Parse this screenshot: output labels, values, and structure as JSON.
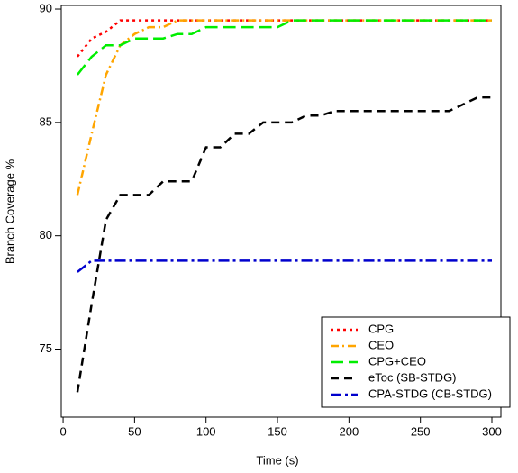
{
  "chart_data": {
    "type": "line",
    "x_label": "Time (s)",
    "y_label": "Branch Coverage %",
    "x": [
      10,
      20,
      30,
      40,
      50,
      60,
      70,
      80,
      90,
      100,
      110,
      120,
      130,
      140,
      150,
      160,
      170,
      180,
      190,
      200,
      210,
      220,
      230,
      240,
      250,
      260,
      270,
      280,
      290,
      300
    ],
    "series": [
      {
        "name": "CPG",
        "color": "#ff0000",
        "linestyle": "dotted",
        "values": [
          87.9,
          88.7,
          89.0,
          89.5,
          89.5,
          89.5,
          89.5,
          89.5,
          89.5,
          89.5,
          89.5,
          89.5,
          89.5,
          89.5,
          89.5,
          89.5,
          89.5,
          89.5,
          89.5,
          89.5,
          89.5,
          89.5,
          89.5,
          89.5,
          89.5,
          89.5,
          89.5,
          89.5,
          89.5,
          89.5
        ]
      },
      {
        "name": "CEO",
        "color": "#ffa500",
        "linestyle": "dashdot",
        "values": [
          81.8,
          84.5,
          87.1,
          88.4,
          88.9,
          89.2,
          89.2,
          89.5,
          89.5,
          89.5,
          89.5,
          89.5,
          89.5,
          89.5,
          89.5,
          89.5,
          89.5,
          89.5,
          89.5,
          89.5,
          89.5,
          89.5,
          89.5,
          89.5,
          89.5,
          89.5,
          89.5,
          89.5,
          89.5,
          89.5
        ]
      },
      {
        "name": "CPG+CEO",
        "color": "#00ee00",
        "linestyle": "longdash",
        "values": [
          87.1,
          87.9,
          88.4,
          88.4,
          88.7,
          88.7,
          88.7,
          88.9,
          88.9,
          89.2,
          89.2,
          89.2,
          89.2,
          89.2,
          89.2,
          89.5,
          89.5,
          89.5,
          89.5,
          89.5,
          89.5,
          89.5,
          89.5,
          89.5,
          89.5,
          89.5,
          89.5,
          89.5,
          89.5,
          89.5
        ]
      },
      {
        "name": "eToc (SB-STDG)",
        "color": "#000000",
        "linestyle": "dashed",
        "values": [
          73.1,
          77.0,
          80.7,
          81.8,
          81.8,
          81.8,
          82.4,
          82.4,
          82.4,
          83.9,
          83.9,
          84.5,
          84.5,
          85.0,
          85.0,
          85.0,
          85.3,
          85.3,
          85.5,
          85.5,
          85.5,
          85.5,
          85.5,
          85.5,
          85.5,
          85.5,
          85.5,
          85.8,
          86.1,
          86.1
        ]
      },
      {
        "name": "CPA-STDG (CB-STDG)",
        "color": "#0000cd",
        "linestyle": "twodash",
        "values": [
          78.4,
          78.9,
          78.9,
          78.9,
          78.9,
          78.9,
          78.9,
          78.9,
          78.9,
          78.9,
          78.9,
          78.9,
          78.9,
          78.9,
          78.9,
          78.9,
          78.9,
          78.9,
          78.9,
          78.9,
          78.9,
          78.9,
          78.9,
          78.9,
          78.9,
          78.9,
          78.9,
          78.9,
          78.9,
          78.9
        ]
      }
    ],
    "xlim": [
      -1.3,
      306.3
    ],
    "xticks": [
      0,
      50,
      100,
      150,
      200,
      250,
      300
    ],
    "ylim": [
      72,
      90.16
    ],
    "yticks": [
      75,
      80,
      85,
      90
    ],
    "grid": false,
    "legend": "bottom-right"
  }
}
